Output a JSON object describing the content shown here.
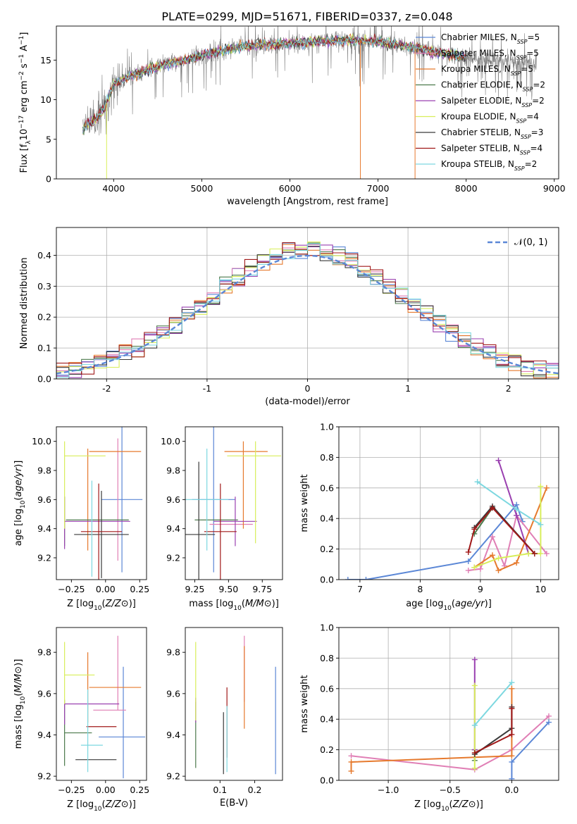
{
  "figure": {
    "title": "PLATE=0299, MJD=51671, FIBERID=0337, z=0.048"
  },
  "colors": {
    "Chabrier MILES": "#5b87d6",
    "Salpeter MILES": "#e07fb5",
    "Kroupa MILES": "#e67a2e",
    "Chabrier ELODIE": "#4c7a4c",
    "Salpeter ELODIE": "#9a40b0",
    "Kroupa ELODIE": "#d8ee5a",
    "Chabrier STELIB": "#3a3a3a",
    "Salpeter STELIB": "#a01818",
    "Kroupa STELIB": "#7dd8e0",
    "data": "#7f7f7f"
  },
  "chart_data": [
    {
      "id": "spectrum",
      "type": "line",
      "xlabel": "wavelength [Angstrom, rest frame]",
      "ylabel": "Flux [f_λ10^-17 erg cm^-2 s^-1 A^-1]",
      "xlim": [
        3350,
        9050
      ],
      "ylim": [
        0,
        19.3
      ],
      "xticks": [
        4000,
        5000,
        6000,
        7000,
        8000,
        9000
      ],
      "yticks": [
        0,
        5,
        10,
        15
      ],
      "grid": false,
      "legend_position": "top-right",
      "legend": [
        {
          "model": "Chabrier MILES",
          "nssp": "5"
        },
        {
          "model": "Salpeter MILES",
          "nssp": "5"
        },
        {
          "model": "Kroupa MILES",
          "nssp": "5"
        },
        {
          "model": "Chabrier ELODIE",
          "nssp": "2"
        },
        {
          "model": "Salpeter ELODIE",
          "nssp": "2"
        },
        {
          "model": "Kroupa ELODIE",
          "nssp": "4"
        },
        {
          "model": "Chabrier STELIB",
          "nssp": "3"
        },
        {
          "model": "Salpeter STELIB",
          "nssp": "4"
        },
        {
          "model": "Kroupa STELIB",
          "nssp": "2"
        }
      ],
      "continuum": {
        "x": [
          3650,
          3700,
          3800,
          3900,
          4000,
          4200,
          4400,
          4600,
          4800,
          5000,
          5200,
          5400,
          5600,
          5800,
          6000,
          6200,
          6400,
          6600,
          6800,
          7000,
          7200,
          7400,
          7600,
          7800,
          8000,
          8200,
          8400,
          8600,
          8800
        ],
        "y": [
          6.0,
          7.0,
          7.5,
          9.0,
          12.0,
          13.0,
          13.8,
          14.5,
          15.0,
          15.6,
          16.2,
          16.6,
          16.9,
          17.0,
          17.1,
          17.3,
          17.4,
          17.5,
          17.5,
          17.3,
          17.0,
          16.6,
          16.1,
          15.7,
          15.4,
          15.0,
          14.9,
          14.8,
          14.6
        ]
      },
      "model_range": [
        3650,
        8000
      ]
    },
    {
      "id": "residuals",
      "type": "bar",
      "xlabel": "(data-model)/error",
      "ylabel": "Normed distribution",
      "xlim": [
        -2.5,
        2.5
      ],
      "ylim": [
        0,
        0.49
      ],
      "xticks": [
        -2,
        -1,
        0,
        1,
        2
      ],
      "yticks": [
        0.0,
        0.1,
        0.2,
        0.3,
        0.4
      ],
      "grid": true,
      "legend_position": "top-right",
      "gaussian_label": "𝒩(0, 1)",
      "bins": 40
    },
    {
      "id": "age_vs_Z",
      "type": "scatter",
      "xlabel": "Z [log10(Z/Z⊙)]",
      "ylabel": "age  [log10(age/yr)]",
      "xlim": [
        -0.36,
        0.3
      ],
      "ylim": [
        9.05,
        10.1
      ],
      "xticks": [
        -0.25,
        0.0,
        0.25
      ],
      "yticks": [
        9.2,
        9.4,
        9.6,
        9.8,
        10.0
      ],
      "xtick_labels": [
        "−0.25",
        "0.00",
        "0.25"
      ],
      "ytick_labels": [
        "9.2",
        "9.4",
        "9.6",
        "9.8",
        "10.0"
      ],
      "grid": false,
      "points": [
        {
          "model": "Chabrier MILES",
          "x": 0.12,
          "xerr": 0.15,
          "y": 9.6,
          "yerr": 0.5
        },
        {
          "model": "Salpeter MILES",
          "x": 0.09,
          "xerr": 0.0,
          "y": 9.6,
          "yerr": 0.42
        },
        {
          "model": "Kroupa MILES",
          "x": 0.07,
          "xerr": 0.19,
          "y": 9.93,
          "yerr": 0.0
        },
        {
          "model": "Kroupa MILES ",
          "x": -0.13,
          "xerr": 0.0,
          "y": 9.6,
          "yerr": 0.35
        },
        {
          "model": "Chabrier ELODIE",
          "x": -0.3,
          "xerr": 0.0,
          "y": 9.45,
          "yerr": 0.17
        },
        {
          "model": "Chabrier ELODIE ",
          "x": -0.06,
          "xerr": 0.23,
          "y": 9.46,
          "yerr": 0.0
        },
        {
          "model": "Salpeter ELODIE",
          "x": -0.3,
          "xerr": 0.0,
          "y": 9.44,
          "yerr": 0.18
        },
        {
          "model": "Salpeter ELODIE ",
          "x": -0.06,
          "xerr": 0.24,
          "y": 9.45,
          "yerr": 0.0
        },
        {
          "model": "Kroupa ELODIE",
          "x": -0.3,
          "xerr": 0.0,
          "y": 9.7,
          "yerr": 0.3
        },
        {
          "model": "Kroupa ELODIE ",
          "x": -0.15,
          "xerr": 0.15,
          "y": 9.9,
          "yerr": 0.0
        },
        {
          "model": "Chabrier STELIB",
          "x": -0.03,
          "xerr": 0.2,
          "y": 9.36,
          "yerr": 0.0
        },
        {
          "model": "Chabrier STELIB ",
          "x": -0.03,
          "xerr": 0.0,
          "y": 9.36,
          "yerr": 0.3
        },
        {
          "model": "Salpeter STELIB",
          "x": -0.03,
          "xerr": 0.15,
          "y": 9.38,
          "yerr": 0.0
        },
        {
          "model": "Salpeter STELIB ",
          "x": -0.05,
          "xerr": 0.0,
          "y": 9.38,
          "yerr": 0.33
        },
        {
          "model": "Kroupa STELIB",
          "x": -0.1,
          "xerr": 0.0,
          "y": 9.4,
          "yerr": 0.33
        }
      ]
    },
    {
      "id": "age_vs_mass",
      "type": "scatter",
      "xlabel": "mass [log10(M/M⊙)]",
      "xlim": [
        9.18,
        9.9
      ],
      "ylim": [
        9.05,
        10.1
      ],
      "xticks": [
        9.25,
        9.5,
        9.75
      ],
      "yticks": [
        9.2,
        9.4,
        9.6,
        9.8,
        10.0
      ],
      "xtick_labels": [
        "9.25",
        "9.50",
        "9.75"
      ],
      "ytick_labels": [
        "9.2",
        "9.4",
        "9.6",
        "9.8",
        "10.0"
      ],
      "grid": false,
      "points": [
        {
          "model": "Chabrier MILES",
          "x": 9.39,
          "xerr": 0.16,
          "y": 9.6,
          "yerr": 0.5
        },
        {
          "model": "Salpeter MILES",
          "x": 9.52,
          "xerr": 0.16,
          "y": 9.43,
          "yerr": 0.0
        },
        {
          "model": "Kroupa MILES",
          "x": 9.63,
          "xerr": 0.16,
          "y": 9.93,
          "yerr": 0.0
        },
        {
          "model": "Kroupa MILES ",
          "x": 9.61,
          "xerr": 0.0,
          "y": 9.7,
          "yerr": 0.3
        },
        {
          "model": "Chabrier ELODIE",
          "x": 9.41,
          "xerr": 0.16,
          "y": 9.46,
          "yerr": 0.0
        },
        {
          "model": "Salpeter ELODIE",
          "x": 9.55,
          "xerr": 0.16,
          "y": 9.45,
          "yerr": 0.0
        },
        {
          "model": "Salpeter ELODIE ",
          "x": 9.55,
          "xerr": 0.0,
          "y": 9.45,
          "yerr": 0.17
        },
        {
          "model": "Kroupa ELODIE",
          "x": 9.69,
          "xerr": 0.2,
          "y": 9.9,
          "yerr": 0.0
        },
        {
          "model": "Kroupa ELODIE ",
          "x": 9.7,
          "xerr": 0.0,
          "y": 9.65,
          "yerr": 0.35
        },
        {
          "model": "Chabrier STELIB",
          "x": 9.28,
          "xerr": 0.12,
          "y": 9.36,
          "yerr": 0.0
        },
        {
          "model": "Chabrier STELIB ",
          "x": 9.28,
          "xerr": 0.0,
          "y": 9.36,
          "yerr": 0.5
        },
        {
          "model": "Salpeter STELIB",
          "x": 9.44,
          "xerr": 0.12,
          "y": 9.38,
          "yerr": 0.0
        },
        {
          "model": "Salpeter STELIB ",
          "x": 9.44,
          "xerr": 0.0,
          "y": 9.38,
          "yerr": 0.33
        },
        {
          "model": "Kroupa STELIB",
          "x": 9.34,
          "xerr": 0.16,
          "y": 9.6,
          "yerr": 0.0
        },
        {
          "model": "Kroupa STELIB ",
          "x": 9.34,
          "xerr": 0.0,
          "y": 9.6,
          "yerr": 0.35
        }
      ]
    },
    {
      "id": "weight_vs_age",
      "type": "line",
      "xlabel": "age  [log10(age/yr)]",
      "ylabel": "mass weight",
      "xlim": [
        6.65,
        10.3
      ],
      "ylim": [
        0,
        1
      ],
      "xticks": [
        7,
        8,
        9,
        10
      ],
      "yticks": [
        0.0,
        0.2,
        0.4,
        0.6,
        0.8,
        1.0
      ],
      "grid": true,
      "series": [
        {
          "model": "Chabrier MILES",
          "x": [
            6.8,
            7.1,
            8.8,
            9.6,
            9.7
          ],
          "y": [
            0.0,
            0.0,
            0.12,
            0.49,
            0.38
          ]
        },
        {
          "model": "Salpeter MILES",
          "x": [
            8.8,
            9.0,
            9.2,
            9.4,
            9.6,
            10.1
          ],
          "y": [
            0.06,
            0.07,
            0.28,
            0.09,
            0.42,
            0.17
          ]
        },
        {
          "model": "Kroupa MILES",
          "x": [
            8.9,
            9.2,
            9.3,
            9.6,
            10.1
          ],
          "y": [
            0.08,
            0.16,
            0.06,
            0.11,
            0.6
          ]
        },
        {
          "model": "Chabrier ELODIE",
          "x": [
            8.9,
            9.2
          ],
          "y": [
            0.3,
            0.47
          ]
        },
        {
          "model": "Salpeter ELODIE",
          "x": [
            9.3,
            9.6,
            9.8
          ],
          "y": [
            0.78,
            0.42,
            0.17
          ]
        },
        {
          "model": "Kroupa ELODIE",
          "x": [
            8.9,
            9.3,
            9.8,
            10.0,
            10.0
          ],
          "y": [
            0.08,
            0.14,
            0.17,
            0.17,
            0.61
          ]
        },
        {
          "model": "Chabrier STELIB",
          "x": [
            8.9,
            9.2,
            9.9
          ],
          "y": [
            0.34,
            0.48,
            0.17
          ]
        },
        {
          "model": "Salpeter STELIB",
          "x": [
            8.8,
            8.9,
            9.2,
            9.9
          ],
          "y": [
            0.18,
            0.33,
            0.47,
            0.17
          ]
        },
        {
          "model": "Kroupa STELIB",
          "x": [
            8.95,
            9.6,
            10.0
          ],
          "y": [
            0.64,
            0.46,
            0.36
          ]
        }
      ]
    },
    {
      "id": "mass_vs_Z",
      "type": "scatter",
      "xlabel": "Z [log10(Z/Z⊙)]",
      "ylabel": "mass [log10(M/M⊙)]",
      "xlim": [
        -0.36,
        0.3
      ],
      "ylim": [
        9.18,
        9.92
      ],
      "xticks": [
        -0.25,
        0.0,
        0.25
      ],
      "yticks": [
        9.2,
        9.4,
        9.6,
        9.8
      ],
      "xtick_labels": [
        "−0.25",
        "0.00",
        "0.25"
      ],
      "ytick_labels": [
        "9.2",
        "9.4",
        "9.6",
        "9.8"
      ],
      "grid": false,
      "points": [
        {
          "model": "Chabrier MILES",
          "x": 0.12,
          "xerr": 0.17,
          "y": 9.39,
          "yerr": 0.0
        },
        {
          "model": "Chabrier MILES ",
          "x": 0.13,
          "xerr": 0.0,
          "y": 9.46,
          "yerr": 0.27
        },
        {
          "model": "Salpeter MILES",
          "x": 0.03,
          "xerr": 0.12,
          "y": 9.52,
          "yerr": 0.0
        },
        {
          "model": "Salpeter MILES ",
          "x": 0.09,
          "xerr": 0.0,
          "y": 9.7,
          "yerr": 0.18
        },
        {
          "model": "Kroupa MILES",
          "x": 0.07,
          "xerr": 0.19,
          "y": 9.63,
          "yerr": 0.0
        },
        {
          "model": "Kroupa MILES ",
          "x": -0.13,
          "xerr": 0.0,
          "y": 9.63,
          "yerr": 0.17
        },
        {
          "model": "Chabrier ELODIE",
          "x": -0.3,
          "xerr": 0.0,
          "y": 9.41,
          "yerr": 0.16
        },
        {
          "model": "Chabrier ELODIE ",
          "x": -0.2,
          "xerr": 0.1,
          "y": 9.41,
          "yerr": 0.0
        },
        {
          "model": "Salpeter ELODIE",
          "x": -0.1,
          "xerr": 0.2,
          "y": 9.55,
          "yerr": 0.0
        },
        {
          "model": "Salpeter ELODIE ",
          "x": -0.3,
          "xerr": 0.0,
          "y": 9.5,
          "yerr": 0.05
        },
        {
          "model": "Kroupa ELODIE",
          "x": -0.19,
          "xerr": 0.11,
          "y": 9.69,
          "yerr": 0.0
        },
        {
          "model": "Kroupa ELODIE ",
          "x": -0.3,
          "xerr": 0.0,
          "y": 9.7,
          "yerr": 0.15
        },
        {
          "model": "Chabrier STELIB",
          "x": -0.07,
          "xerr": 0.15,
          "y": 9.28,
          "yerr": 0.0
        },
        {
          "model": "Salpeter STELIB",
          "x": -0.03,
          "xerr": 0.11,
          "y": 9.44,
          "yerr": 0.0
        },
        {
          "model": "Kroupa STELIB",
          "x": -0.1,
          "xerr": 0.08,
          "y": 9.35,
          "yerr": 0.0
        },
        {
          "model": "Kroupa STELIB ",
          "x": -0.13,
          "xerr": 0.0,
          "y": 9.42,
          "yerr": 0.2
        }
      ]
    },
    {
      "id": "mass_vs_ebv",
      "type": "scatter",
      "xlabel": "E(B-V)",
      "xlim": [
        0.0,
        0.28
      ],
      "ylim": [
        9.18,
        9.92
      ],
      "xticks": [
        0.1,
        0.2
      ],
      "yticks": [
        9.2,
        9.4,
        9.6,
        9.8
      ],
      "xtick_labels": [
        "0.1",
        "0.2"
      ],
      "ytick_labels": [
        "9.2",
        "9.4",
        "9.6",
        "9.8"
      ],
      "grid": false,
      "points": [
        {
          "model": "Chabrier MILES",
          "x": 0.26,
          "xerr": 0.0,
          "y": 9.47,
          "yerr": 0.26
        },
        {
          "model": "Salpeter MILES",
          "x": 0.17,
          "xerr": 0.0,
          "y": 9.72,
          "yerr": 0.16
        },
        {
          "model": "Kroupa MILES",
          "x": 0.17,
          "xerr": 0.0,
          "y": 9.63,
          "yerr": 0.2
        },
        {
          "model": "Chabrier ELODIE",
          "x": 0.03,
          "xerr": 0.0,
          "y": 9.4,
          "yerr": 0.16
        },
        {
          "model": "Salpeter ELODIE",
          "x": 0.03,
          "xerr": 0.0,
          "y": 9.52,
          "yerr": 0.06
        },
        {
          "model": "Kroupa ELODIE",
          "x": 0.03,
          "xerr": 0.0,
          "y": 9.66,
          "yerr": 0.19
        },
        {
          "model": "Chabrier STELIB",
          "x": 0.11,
          "xerr": 0.0,
          "y": 9.36,
          "yerr": 0.15
        },
        {
          "model": "Salpeter STELIB",
          "x": 0.12,
          "xerr": 0.0,
          "y": 9.46,
          "yerr": 0.17
        },
        {
          "model": "Kroupa STELIB",
          "x": 0.12,
          "xerr": 0.0,
          "y": 9.38,
          "yerr": 0.16
        }
      ]
    },
    {
      "id": "weight_vs_Z",
      "type": "line",
      "xlabel": "Z [log10(Z/Z⊙)]",
      "ylabel": "mass weight",
      "xlim": [
        -1.4,
        0.38
      ],
      "ylim": [
        0,
        1
      ],
      "xticks": [
        -1.0,
        -0.5,
        0.0
      ],
      "yticks": [
        0.0,
        0.2,
        0.4,
        0.6,
        0.8,
        1.0
      ],
      "xtick_labels": [
        "−1.0",
        "−0.5",
        "0.0"
      ],
      "grid": true,
      "series": [
        {
          "model": "Chabrier MILES",
          "x": [
            0.0,
            0.0,
            0.3
          ],
          "y": [
            0.01,
            0.12,
            0.38
          ]
        },
        {
          "model": "Salpeter MILES",
          "x": [
            -1.3,
            -0.3,
            0.0,
            0.3
          ],
          "y": [
            0.16,
            0.07,
            0.2,
            0.42
          ]
        },
        {
          "model": "Kroupa MILES",
          "x": [
            -1.3,
            -1.3,
            0.0,
            0.0
          ],
          "y": [
            0.06,
            0.12,
            0.16,
            0.6
          ]
        },
        {
          "model": "Chabrier ELODIE",
          "x": [
            -0.3,
            -0.3
          ],
          "y": [
            0.13,
            0.2
          ]
        },
        {
          "model": "Salpeter ELODIE",
          "x": [
            -0.3,
            -0.3
          ],
          "y": [
            0.2,
            0.79
          ]
        },
        {
          "model": "Kroupa ELODIE",
          "x": [
            -0.3,
            -0.3
          ],
          "y": [
            0.08,
            0.62
          ]
        },
        {
          "model": "Chabrier STELIB",
          "x": [
            -0.3,
            0.0,
            0.0
          ],
          "y": [
            0.17,
            0.34,
            0.48
          ]
        },
        {
          "model": "Salpeter STELIB",
          "x": [
            -0.3,
            0.0,
            0.0
          ],
          "y": [
            0.18,
            0.3,
            0.47
          ]
        },
        {
          "model": "Kroupa STELIB",
          "x": [
            -0.3,
            0.0
          ],
          "y": [
            0.36,
            0.64
          ]
        }
      ]
    }
  ]
}
